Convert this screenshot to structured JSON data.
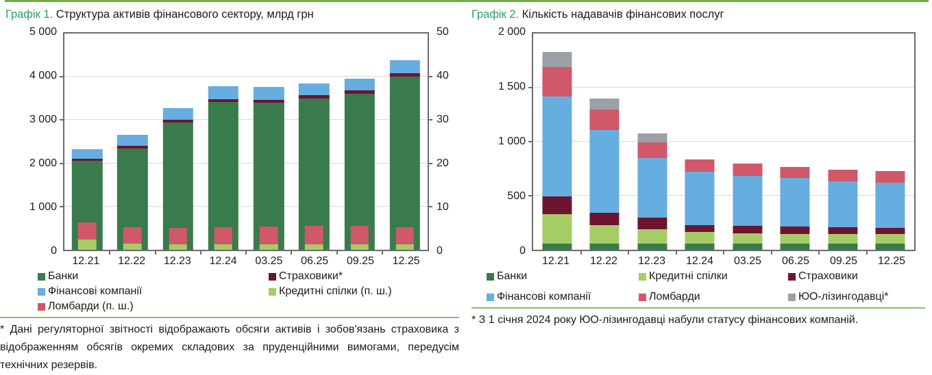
{
  "page": {
    "accent_color": "#2E9C66",
    "top_rule_color": "#70AD47",
    "separator_color": "#8CBD6F",
    "text_color": "#1a1a1a",
    "grid_color": "#d9d9d9",
    "axis_color": "#6a6a6a"
  },
  "chart_data": [
    {
      "type": "bar",
      "stacked": true,
      "grid": "horizontal",
      "legend_position": "bottom",
      "title_prefix": "Графік 1.",
      "title": "Структура активів фінансового сектору, млрд грн",
      "categories": [
        "12.21",
        "12.22",
        "12.23",
        "12.24",
        "03.25",
        "06.25",
        "09.25",
        "12.25"
      ],
      "left_axis": {
        "min": 0,
        "max": 5000,
        "step": 1000,
        "ticks": [
          "5 000",
          "4 000",
          "3 000",
          "2 000",
          "1 000",
          "0"
        ]
      },
      "right_axis": {
        "min": 0,
        "max": 50,
        "step": 10,
        "ticks": [
          "50",
          "40",
          "30",
          "20",
          "10",
          "0"
        ]
      },
      "series": [
        {
          "name": "Банки",
          "axis": "left",
          "color": "#397B4C",
          "values": [
            2050,
            2340,
            2950,
            3420,
            3400,
            3500,
            3600,
            4000
          ]
        },
        {
          "name": "Страховики*",
          "axis": "left",
          "color": "#6E1430",
          "values": [
            60,
            70,
            60,
            60,
            60,
            80,
            80,
            80
          ]
        },
        {
          "name": "Фінансові компанії",
          "axis": "left",
          "color": "#66ADE0",
          "values": [
            220,
            250,
            260,
            310,
            310,
            260,
            270,
            300
          ]
        },
        {
          "name": "Кредитні спілки (п. ш.)",
          "axis": "right",
          "color": "#A6CC65",
          "values": [
            2.3,
            1.4,
            1.3,
            1.3,
            1.3,
            1.3,
            1.3,
            1.2
          ]
        },
        {
          "name": "Ломбарди (п. ш.)",
          "axis": "right",
          "color": "#D05869",
          "values": [
            4.0,
            3.9,
            3.7,
            4.0,
            4.1,
            4.2,
            4.3,
            4.1
          ]
        }
      ],
      "legend": [
        {
          "label": "Банки",
          "color": "#397B4C"
        },
        {
          "label": "Страховики*",
          "color": "#6E1430"
        },
        {
          "label": "Фінансові компанії",
          "color": "#66ADE0"
        },
        {
          "label": "Кредитні спілки (п. ш.)",
          "color": "#A6CC65"
        },
        {
          "label": "Ломбарди (п. ш.)",
          "color": "#D05869"
        }
      ],
      "footnote": "* Дані регуляторної звітності відображають обсяги активів і зобов'язань страховика з відображенням обсягів окремих складових за пруденційними вимогами, передусім технічних резервів."
    },
    {
      "type": "bar",
      "stacked": true,
      "grid": "horizontal",
      "legend_position": "bottom",
      "title_prefix": "Графік 2.",
      "title": "Кількість надавачів фінансових послуг",
      "categories": [
        "12.21",
        "12.22",
        "12.23",
        "12.24",
        "03.25",
        "06.25",
        "09.25",
        "12.25"
      ],
      "left_axis": {
        "min": 0,
        "max": 2000,
        "step": 500,
        "ticks": [
          "2 000",
          "1 500",
          "1 000",
          "500",
          "0"
        ]
      },
      "series": [
        {
          "name": "Банки",
          "axis": "left",
          "color": "#397B4C",
          "values": [
            60,
            60,
            58,
            57,
            57,
            57,
            57,
            57
          ]
        },
        {
          "name": "Кредитні спілки",
          "axis": "left",
          "color": "#A6CC65",
          "values": [
            272,
            165,
            130,
            105,
            95,
            90,
            86,
            86
          ]
        },
        {
          "name": "Страховики",
          "axis": "left",
          "color": "#6E1430",
          "values": [
            165,
            115,
            108,
            68,
            68,
            68,
            65,
            60
          ]
        },
        {
          "name": "Фінансові компанії",
          "axis": "left",
          "color": "#66ADE0",
          "values": [
            920,
            770,
            552,
            493,
            465,
            447,
            428,
            417
          ]
        },
        {
          "name": "Ломбарди",
          "axis": "left",
          "color": "#D05869",
          "values": [
            276,
            185,
            149,
            115,
            110,
            106,
            105,
            110
          ]
        },
        {
          "name": "ЮО-лізингодавці*",
          "axis": "left",
          "color": "#9BA1A6",
          "values": [
            134,
            105,
            77,
            0,
            0,
            0,
            0,
            0
          ]
        }
      ],
      "legend": [
        {
          "label": "Банки",
          "color": "#397B4C"
        },
        {
          "label": "Кредитні спілки",
          "color": "#A6CC65"
        },
        {
          "label": "Страховики",
          "color": "#6E1430"
        },
        {
          "label": "Фінансові компанії",
          "color": "#66ADE0"
        },
        {
          "label": "Ломбарди",
          "color": "#D05869"
        },
        {
          "label": "ЮО-лізингодавці*",
          "color": "#9BA1A6"
        }
      ],
      "footnote": "* З 1 січня 2024 року ЮО-лізингодавці набули статусу фінансових компаній."
    }
  ]
}
